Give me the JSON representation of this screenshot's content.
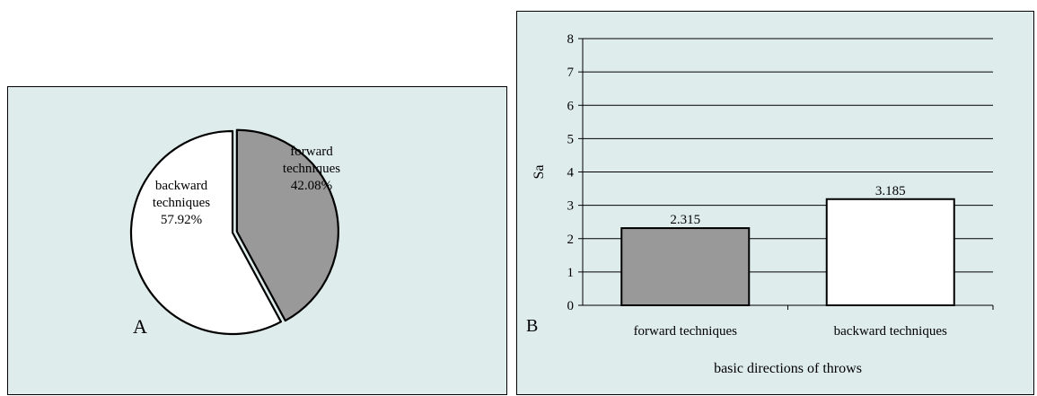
{
  "chart_data": [
    {
      "type": "pie",
      "panel_label": "A",
      "slices": [
        {
          "label_lines": [
            "forward",
            "techniques",
            "42.08%"
          ],
          "value": 42.08,
          "color": "#999999"
        },
        {
          "label_lines": [
            "backward",
            "techniques",
            "57.92%"
          ],
          "value": 57.92,
          "color": "#ffffff"
        }
      ]
    },
    {
      "type": "bar",
      "panel_label": "B",
      "categories": [
        "forward techniques",
        "backward techniques"
      ],
      "values": [
        2.315,
        3.185
      ],
      "value_labels": [
        "2.315",
        "3.185"
      ],
      "colors": [
        "#999999",
        "#ffffff"
      ],
      "xlabel": "basic directions of throws",
      "ylabel": "Sa",
      "ylim": [
        0,
        8
      ],
      "yticks": [
        "0",
        "1",
        "2",
        "3",
        "4",
        "5",
        "6",
        "7",
        "8"
      ],
      "grid": true
    }
  ]
}
